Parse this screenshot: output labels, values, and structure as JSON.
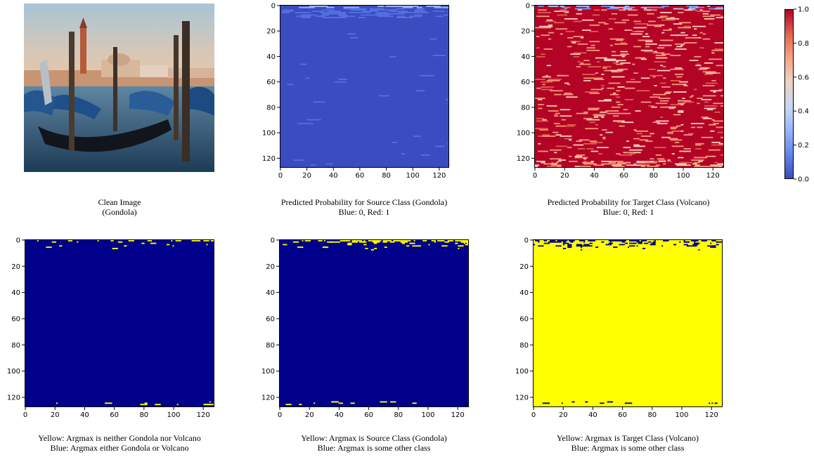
{
  "chart_data": [
    {
      "type": "image",
      "caption": [
        "Clean Image",
        "(Gondola)"
      ]
    },
    {
      "type": "heatmap",
      "caption": [
        "Predicted Probability for Source Class (Gondola)",
        "Blue: 0, Red: 1"
      ],
      "xlim": [
        0,
        127
      ],
      "ylim": [
        0,
        127
      ],
      "xticks": [
        0,
        20,
        40,
        60,
        80,
        100,
        120
      ],
      "yticks": [
        0,
        20,
        40,
        60,
        80,
        100,
        120
      ],
      "colormap": "coolwarm",
      "dominant_value": 0.0
    },
    {
      "type": "heatmap",
      "caption": [
        "Predicted Probability for Target Class (Volcano)",
        "Blue: 0, Red: 1"
      ],
      "xlim": [
        0,
        127
      ],
      "ylim": [
        0,
        127
      ],
      "xticks": [
        0,
        20,
        40,
        60,
        80,
        100,
        120
      ],
      "yticks": [
        0,
        20,
        40,
        60,
        80,
        100,
        120
      ],
      "colormap": "coolwarm",
      "dominant_value": 1.0
    },
    {
      "type": "heatmap",
      "caption": [
        "Yellow: Argmax is neither Gondola nor Volcano",
        "Blue: Argmax either Gondola or Volcano"
      ],
      "xlim": [
        0,
        127
      ],
      "ylim": [
        0,
        127
      ],
      "xticks": [
        0,
        20,
        40,
        60,
        80,
        100,
        120
      ],
      "yticks": [
        0,
        20,
        40,
        60,
        80,
        100,
        120
      ],
      "colormap": "binary-blue-yellow",
      "dominant_value": 0
    },
    {
      "type": "heatmap",
      "caption": [
        "Yellow: Argmax is Source Class (Gondola)",
        "Blue: Argmax is some other class"
      ],
      "xlim": [
        0,
        127
      ],
      "ylim": [
        0,
        127
      ],
      "xticks": [
        0,
        20,
        40,
        60,
        80,
        100,
        120
      ],
      "yticks": [
        0,
        20,
        40,
        60,
        80,
        100,
        120
      ],
      "colormap": "binary-blue-yellow",
      "dominant_value": 0
    },
    {
      "type": "heatmap",
      "caption": [
        "Yellow: Argmax is Target Class (Volcano)",
        "Blue: Argmax is some other class"
      ],
      "xlim": [
        0,
        127
      ],
      "ylim": [
        0,
        127
      ],
      "xticks": [
        0,
        20,
        40,
        60,
        80,
        100,
        120
      ],
      "yticks": [
        0,
        20,
        40,
        60,
        80,
        100,
        120
      ],
      "colormap": "binary-blue-yellow",
      "dominant_value": 1
    }
  ],
  "colorbar": {
    "colormap": "coolwarm",
    "range": [
      0.0,
      1.0
    ],
    "ticks": [
      "0.0",
      "0.2",
      "0.4",
      "0.6",
      "0.8",
      "1.0"
    ]
  },
  "colors": {
    "blue_low": "#3b4cc0",
    "red_high": "#b40426",
    "navy": "#00008b",
    "yellow": "#ffff00"
  }
}
